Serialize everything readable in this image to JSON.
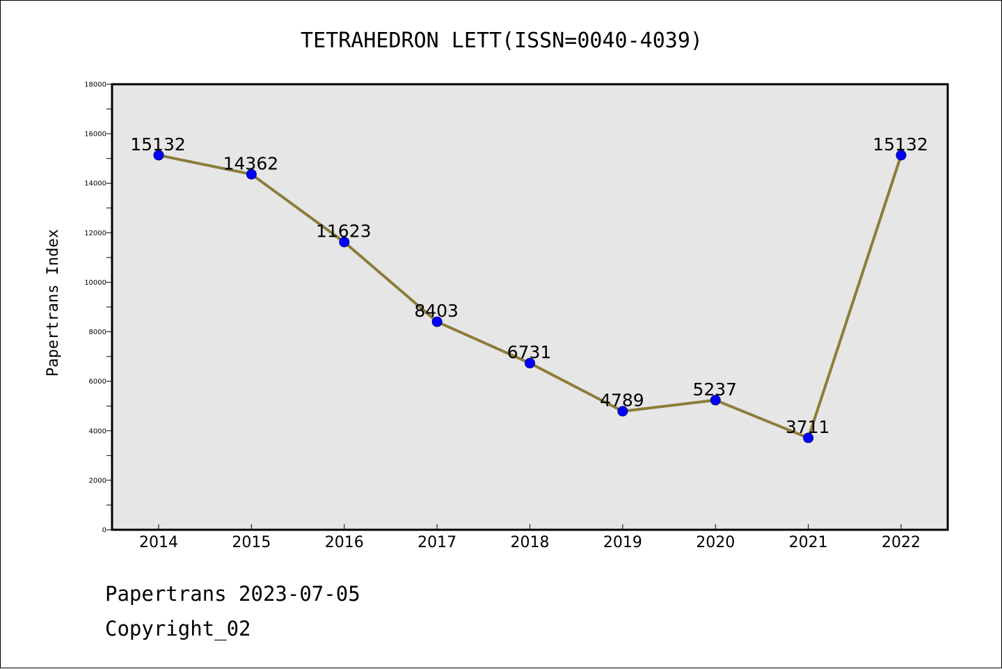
{
  "chart_data": {
    "type": "line",
    "title": "TETRAHEDRON LETT(ISSN=0040-4039)",
    "xlabel": "",
    "ylabel": "Papertrans Index",
    "categories": [
      "2014",
      "2015",
      "2016",
      "2017",
      "2018",
      "2019",
      "2020",
      "2021",
      "2022"
    ],
    "series": [
      {
        "values": [
          15132,
          14362,
          11623,
          8403,
          6731,
          4789,
          5237,
          3711,
          15132
        ]
      }
    ],
    "data_labels": [
      "15132",
      "14362",
      "11623",
      "8403",
      "6731",
      "4789",
      "5237",
      "3711",
      "15132"
    ],
    "ylim": [
      0,
      18000
    ],
    "yticks": [
      0,
      2000,
      4000,
      6000,
      8000,
      10000,
      12000,
      14000,
      16000,
      18000
    ],
    "ytick_labels": [
      "0",
      "2000",
      "4000",
      "6000",
      "8000",
      "10000",
      "12000",
      "14000",
      "16000",
      "18000"
    ],
    "grid": false,
    "legend": "none",
    "colors": {
      "plot_background": "#e6e6e6",
      "line": "#8b7d3a",
      "marker": "#0000ff",
      "marker_edge": "#000080"
    }
  },
  "footer": {
    "date_text": "Papertrans 2023-07-05",
    "copyright_text": "Copyright_02"
  }
}
